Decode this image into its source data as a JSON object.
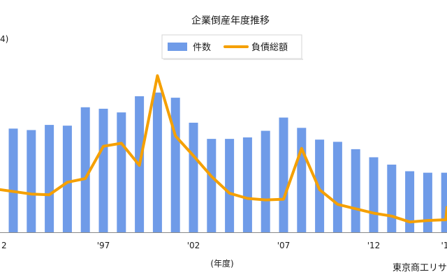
{
  "chart_data": {
    "type": "bar",
    "title": "企業倒産年度推移",
    "legend": {
      "position": "top-center",
      "items": [
        {
          "label": "件数",
          "kind": "bar",
          "color": "#6f9be8"
        },
        {
          "label": "負債総額",
          "kind": "line",
          "color": "#f5a000"
        }
      ]
    },
    "unit_label": "4)",
    "xlabel": "(年度)",
    "source": "東京商工リサ",
    "categories": [
      "1992",
      "1993",
      "1994",
      "1995",
      "1996",
      "1997",
      "1998",
      "1999",
      "2000",
      "2001",
      "2002",
      "2003",
      "2004",
      "2005",
      "2006",
      "2007",
      "2008",
      "2009",
      "2010",
      "2011",
      "2012",
      "2013",
      "2014",
      "2015",
      "2016"
    ],
    "x_tick_labels": [
      {
        "category": "1992",
        "label": "2"
      },
      {
        "category": "1997",
        "label": "'97"
      },
      {
        "category": "2002",
        "label": "'02"
      },
      {
        "category": "2007",
        "label": "'07"
      },
      {
        "category": "2012",
        "label": "'12"
      },
      {
        "category": "2017",
        "label": "'1"
      }
    ],
    "series": [
      {
        "name": "件数",
        "type": "bar",
        "color": "#6f9be8",
        "values": [
          14.1,
          13.9,
          14.6,
          14.5,
          17.0,
          16.8,
          16.3,
          18.5,
          19.0,
          18.3,
          14.9,
          12.7,
          12.7,
          12.9,
          13.8,
          15.6,
          14.2,
          12.6,
          12.3,
          11.3,
          10.2,
          9.2,
          8.3,
          8.1,
          8.1
        ]
      },
      {
        "name": "負債総額",
        "type": "line",
        "color": "#f5a000",
        "values": [
          5.8,
          5.2,
          5.1,
          6.8,
          7.3,
          11.7,
          12.1,
          9.1,
          21.3,
          13.1,
          10.4,
          7.6,
          5.3,
          4.6,
          4.4,
          4.5,
          11.4,
          5.8,
          3.8,
          3.2,
          2.6,
          2.2,
          1.4,
          1.6,
          1.7
        ]
      }
    ],
    "extra_bar_partial_value": 7.9,
    "ylim": [
      0,
      24
    ],
    "grid": false
  }
}
